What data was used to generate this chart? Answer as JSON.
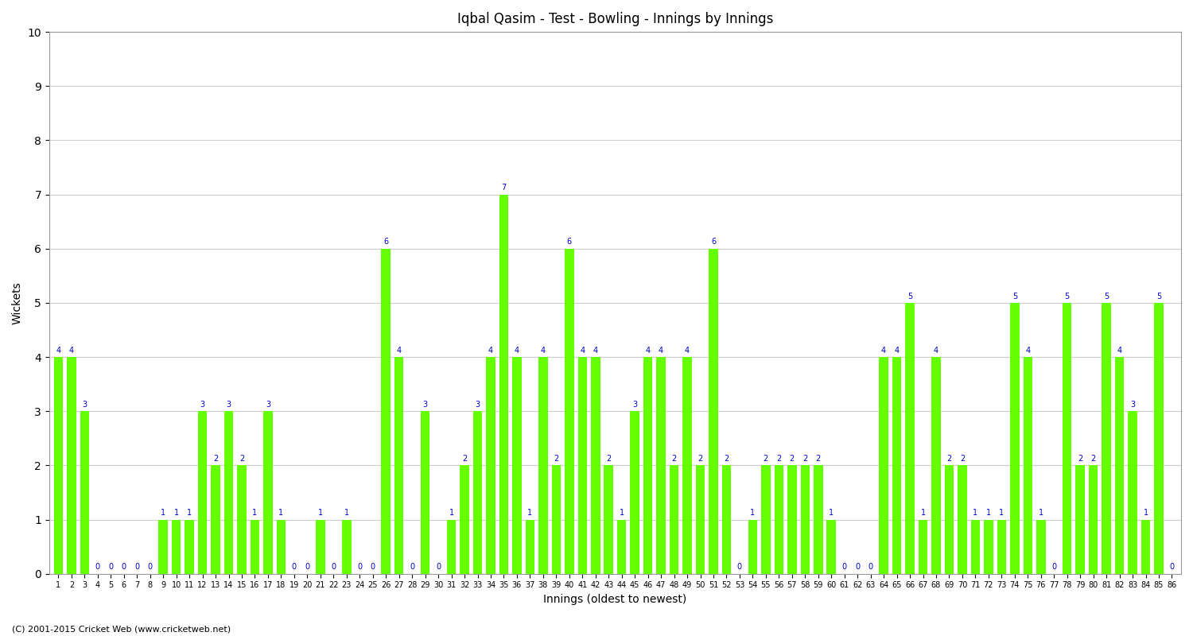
{
  "title": "Iqbal Qasim - Test - Bowling - Innings by Innings",
  "xlabel": "Innings (oldest to newest)",
  "ylabel": "Wickets",
  "footer": "(C) 2001-2015 Cricket Web (www.cricketweb.net)",
  "ylim": [
    0,
    10
  ],
  "yticks": [
    0,
    1,
    2,
    3,
    4,
    5,
    6,
    7,
    8,
    9,
    10
  ],
  "bar_color": "#66ff00",
  "label_color": "#0000cc",
  "background_color": "#ffffff",
  "grid_color": "#cccccc",
  "innings": [
    1,
    2,
    3,
    4,
    5,
    6,
    7,
    8,
    9,
    10,
    11,
    12,
    13,
    14,
    15,
    16,
    17,
    18,
    19,
    20,
    21,
    22,
    23,
    24,
    25,
    26,
    27,
    28,
    29,
    30,
    31,
    32,
    33,
    34,
    35,
    36,
    37,
    38,
    39,
    40,
    41,
    42,
    43,
    44,
    45,
    46,
    47,
    48,
    49,
    50,
    51,
    52,
    53,
    54,
    55,
    56,
    57,
    58,
    59,
    60,
    61,
    62,
    63,
    64,
    65,
    66,
    67,
    68,
    69,
    70,
    71,
    72,
    73,
    74,
    75,
    76,
    77,
    78,
    79,
    80,
    81,
    82,
    83,
    84,
    85,
    86
  ],
  "wickets": [
    4,
    4,
    3,
    0,
    0,
    0,
    0,
    0,
    1,
    1,
    1,
    3,
    2,
    3,
    2,
    1,
    3,
    1,
    0,
    0,
    1,
    0,
    1,
    0,
    0,
    6,
    4,
    0,
    3,
    0,
    1,
    2,
    3,
    4,
    7,
    4,
    1,
    4,
    2,
    6,
    4,
    4,
    2,
    1,
    3,
    4,
    4,
    2,
    4,
    2,
    6,
    2,
    0,
    1,
    2,
    2,
    2,
    2,
    2,
    1,
    0,
    0,
    0,
    4,
    4,
    5,
    1,
    4,
    2,
    2,
    1,
    1,
    1,
    5,
    4,
    1,
    0,
    5,
    2,
    2,
    5,
    4,
    3,
    1,
    5,
    0
  ]
}
